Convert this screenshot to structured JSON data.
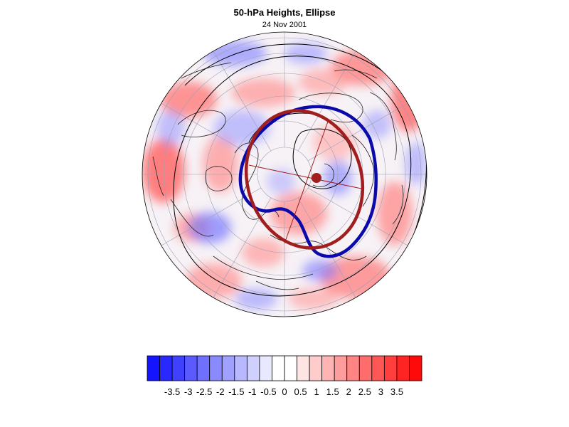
{
  "title": "50-hPa Heights, Ellipse",
  "subtitle": "24 Nov 2001",
  "colorbar": {
    "colors": [
      "#1414ff",
      "#2828ff",
      "#4040ff",
      "#5a5aff",
      "#7070ff",
      "#8a8aff",
      "#a0a0ff",
      "#b8b8ff",
      "#d0d0ff",
      "#e8e8ff",
      "#ffffff",
      "#ffffff",
      "#ffe4e4",
      "#ffcccc",
      "#ffb4b4",
      "#ff9c9c",
      "#ff8484",
      "#ff6c6c",
      "#ff5656",
      "#ff3e3e",
      "#ff2424",
      "#ff0a0a"
    ],
    "tick_labels": [
      "-3.5",
      "-3",
      "-2.5",
      "-2",
      "-1.5",
      "-1",
      "-0.5",
      "0",
      "0.5",
      "1",
      "1.5",
      "2",
      "2.5",
      "3",
      "3.5"
    ]
  },
  "map": {
    "projection": "orthographic north polar",
    "contour_color": "#000000",
    "blue_contour_color": "#0a0aaa",
    "ellipse_color": "#a01e1e"
  }
}
